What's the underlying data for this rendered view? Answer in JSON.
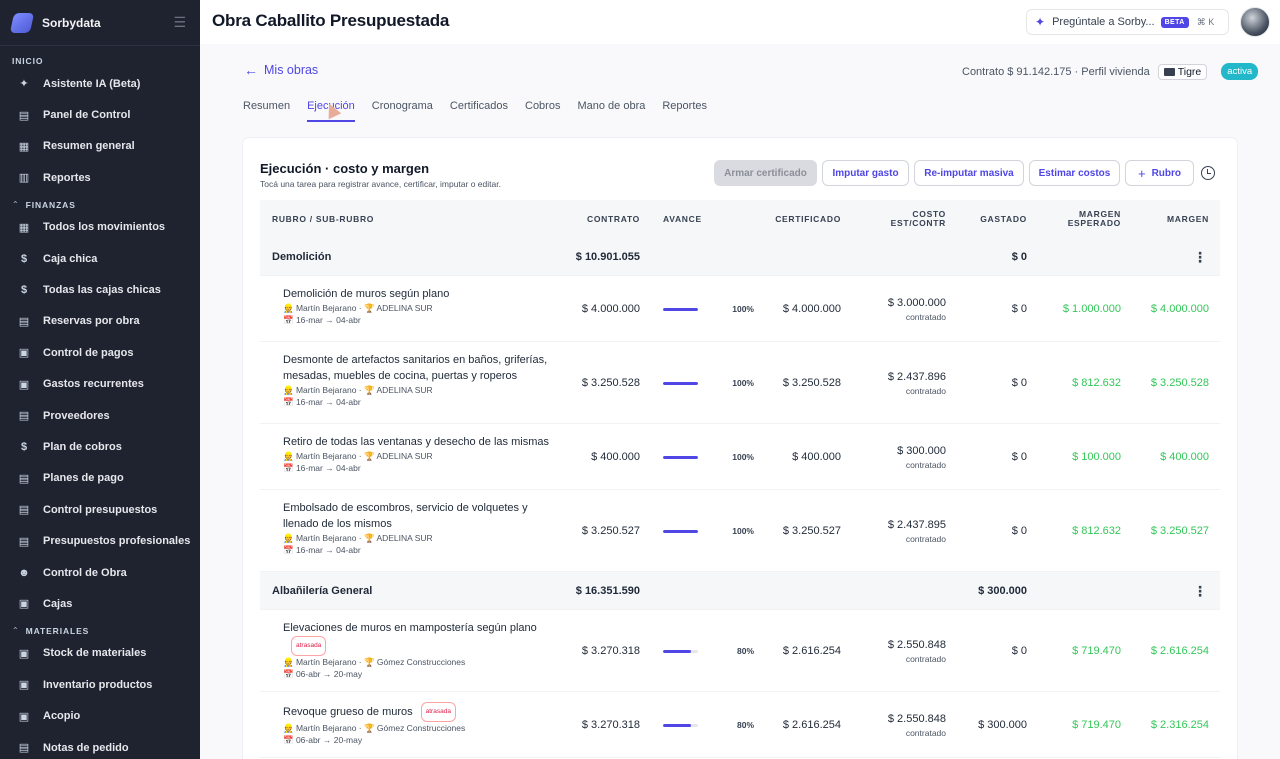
{
  "sidebar": {
    "brand": "Sorbydata",
    "sections": [
      {
        "label": "INICIO",
        "collapsible": false,
        "items": [
          {
            "label": "Asistente IA (Beta)",
            "icon": "sparkle-icon",
            "glyph": "✦"
          },
          {
            "label": "Panel de Control",
            "icon": "document-icon",
            "glyph": "▤"
          },
          {
            "label": "Resumen general",
            "icon": "grid-icon",
            "glyph": "▦"
          },
          {
            "label": "Reportes",
            "icon": "chart-icon",
            "glyph": "▥"
          }
        ]
      },
      {
        "label": "FINANZAS",
        "collapsible": true,
        "items": [
          {
            "label": "Todos los movimientos",
            "icon": "grid-icon",
            "glyph": "▦"
          },
          {
            "label": "Caja chica",
            "icon": "dollar-icon",
            "glyph": "$"
          },
          {
            "label": "Todas las cajas chicas",
            "icon": "dollar-icon",
            "glyph": "$"
          },
          {
            "label": "Reservas por obra",
            "icon": "document-icon",
            "glyph": "▤"
          },
          {
            "label": "Control de pagos",
            "icon": "wallet-icon",
            "glyph": "▣"
          },
          {
            "label": "Gastos recurrentes",
            "icon": "repeat-icon",
            "glyph": "▣"
          },
          {
            "label": "Proveedores",
            "icon": "document-icon",
            "glyph": "▤"
          },
          {
            "label": "Plan de cobros",
            "icon": "dollar-icon",
            "glyph": "$"
          },
          {
            "label": "Planes de pago",
            "icon": "document-icon",
            "glyph": "▤"
          },
          {
            "label": "Control presupuestos",
            "icon": "document-icon",
            "glyph": "▤"
          },
          {
            "label": "Presupuestos profesionales",
            "icon": "document-icon",
            "glyph": "▤"
          },
          {
            "label": "Control de Obra",
            "icon": "users-icon",
            "glyph": "☻"
          },
          {
            "label": "Cajas",
            "icon": "box-icon",
            "glyph": "▣"
          }
        ]
      },
      {
        "label": "MATERIALES",
        "collapsible": true,
        "items": [
          {
            "label": "Stock de materiales",
            "icon": "box-icon",
            "glyph": "▣"
          },
          {
            "label": "Inventario productos",
            "icon": "box-icon",
            "glyph": "▣"
          },
          {
            "label": "Acopio",
            "icon": "box-icon",
            "glyph": "▣"
          },
          {
            "label": "Notas de pedido",
            "icon": "document-icon",
            "glyph": "▤"
          }
        ]
      }
    ]
  },
  "header": {
    "title": "Obra Caballito Presupuestada",
    "ask_label": "Pregúntale a Sorby...",
    "beta_badge": "BETA",
    "shortcut": "⌘ K"
  },
  "breadcrumb": {
    "back_label": "Mis obras"
  },
  "contract": {
    "text": "Contrato $ 91.142.175 · Perfil vivienda",
    "location": "Tigre",
    "status": "activa"
  },
  "tabs": [
    {
      "label": "Resumen",
      "active": false
    },
    {
      "label": "Ejecución",
      "active": true
    },
    {
      "label": "Cronograma",
      "active": false
    },
    {
      "label": "Certificados",
      "active": false
    },
    {
      "label": "Cobros",
      "active": false
    },
    {
      "label": "Mano de obra",
      "active": false
    },
    {
      "label": "Reportes",
      "active": false
    }
  ],
  "card": {
    "title": "Ejecución · costo y margen",
    "subtitle": "Tocá una tarea para registrar avance, certificar, imputar o editar.",
    "buttons": {
      "armar": "Armar certificado",
      "imputar": "Imputar gasto",
      "reimputar": "Re-imputar masiva",
      "estimar": "Estimar costos",
      "rubro": "Rubro"
    }
  },
  "table": {
    "headers": {
      "rubro": "RUBRO / SUB-RUBRO",
      "contrato": "CONTRATO",
      "avance": "AVANCE",
      "certificado": "CERTIFICADO",
      "costo_1": "COSTO",
      "costo_2": "EST/CONTR",
      "gastado": "GASTADO",
      "margen_esp_1": "MARGEN",
      "margen_esp_2": "ESPERADO",
      "margen": "MARGEN"
    },
    "rows": [
      {
        "type": "group",
        "name": "Demolición",
        "contrato": "$ 10.901.055",
        "gastado": "$ 0"
      },
      {
        "type": "task",
        "name": "Demolición de muros según plano",
        "late": "",
        "meta": "👷 Martín Bejarano · 🏆 ADELINA SUR",
        "dates": "📅 16-mar → 04-abr",
        "contrato": "$ 4.000.000",
        "avance": 1.0,
        "avance_label": "100%",
        "certificado": "$ 4.000.000",
        "costo": "$ 3.000.000",
        "costo_sub": "contratado",
        "gastado": "$ 0",
        "margen_esp": "$ 1.000.000",
        "margen": "$ 4.000.000"
      },
      {
        "type": "task",
        "name": "Desmonte de artefactos sanitarios en baños, griferías, mesadas, muebles de cocina, puertas y roperos",
        "late": "",
        "meta": "👷 Martín Bejarano · 🏆 ADELINA SUR",
        "dates": "📅 16-mar → 04-abr",
        "contrato": "$ 3.250.528",
        "avance": 1.0,
        "avance_label": "100%",
        "certificado": "$ 3.250.528",
        "costo": "$ 2.437.896",
        "costo_sub": "contratado",
        "gastado": "$ 0",
        "margen_esp": "$ 812.632",
        "margen": "$ 3.250.528"
      },
      {
        "type": "task",
        "name": "Retiro de todas las ventanas y desecho de las mismas",
        "late": "",
        "meta": "👷 Martín Bejarano · 🏆 ADELINA SUR",
        "dates": "📅 16-mar → 04-abr",
        "contrato": "$ 400.000",
        "avance": 1.0,
        "avance_label": "100%",
        "certificado": "$ 400.000",
        "costo": "$ 300.000",
        "costo_sub": "contratado",
        "gastado": "$ 0",
        "margen_esp": "$ 100.000",
        "margen": "$ 400.000"
      },
      {
        "type": "task",
        "name": "Embolsado de escombros, servicio de volquetes y llenado de los mismos",
        "late": "",
        "meta": "👷 Martín Bejarano · 🏆 ADELINA SUR",
        "dates": "📅 16-mar → 04-abr",
        "contrato": "$ 3.250.527",
        "avance": 1.0,
        "avance_label": "100%",
        "certificado": "$ 3.250.527",
        "costo": "$ 2.437.895",
        "costo_sub": "contratado",
        "gastado": "$ 0",
        "margen_esp": "$ 812.632",
        "margen": "$ 3.250.527"
      },
      {
        "type": "group",
        "name": "Albañilería General",
        "contrato": "$ 16.351.590",
        "gastado": "$ 300.000"
      },
      {
        "type": "task",
        "name": "Elevaciones de muros en mampostería según plano",
        "late": "atrasada",
        "meta": "👷 Martín Bejarano · 🏆 Gómez Construcciones",
        "dates": "📅 06-abr → 20-may",
        "contrato": "$ 3.270.318",
        "avance": 0.8,
        "avance_label": "80%",
        "certificado": "$ 2.616.254",
        "costo": "$ 2.550.848",
        "costo_sub": "contratado",
        "gastado": "$ 0",
        "margen_esp": "$ 719.470",
        "margen": "$ 2.616.254"
      },
      {
        "type": "task",
        "name": "Revoque grueso de muros",
        "late": "atrasada",
        "meta": "👷 Martín Bejarano · 🏆 Gómez Construcciones",
        "dates": "📅 06-abr → 20-may",
        "contrato": "$ 3.270.318",
        "avance": 0.8,
        "avance_label": "80%",
        "certificado": "$ 2.616.254",
        "costo": "$ 2.550.848",
        "costo_sub": "contratado",
        "gastado": "$ 300.000",
        "margen_esp": "$ 719.470",
        "margen": "$ 2.316.254"
      }
    ]
  }
}
